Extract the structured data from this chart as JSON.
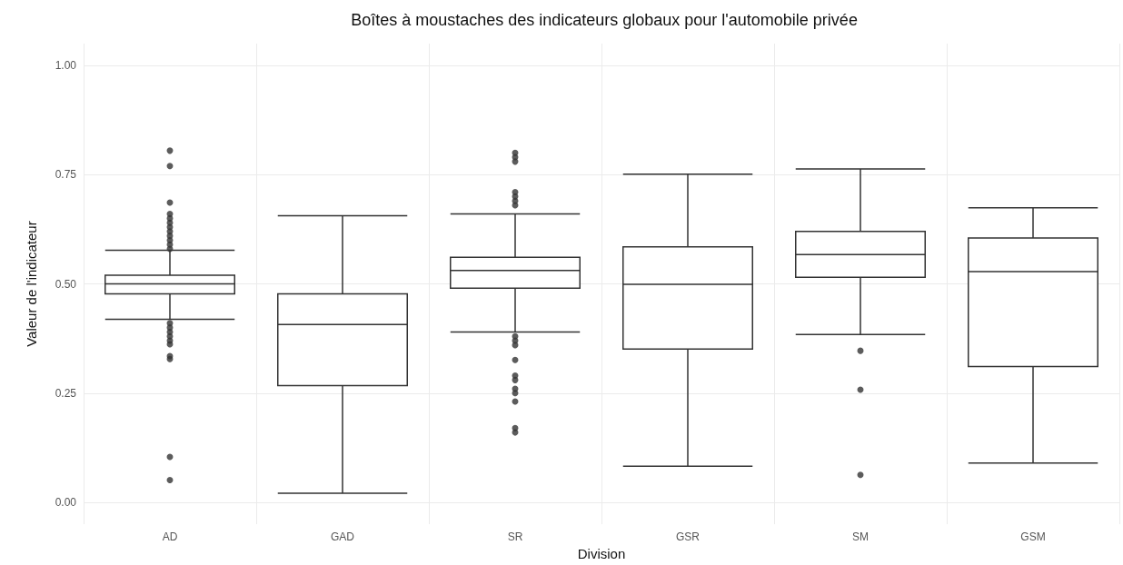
{
  "chart_data": {
    "type": "box",
    "title": "Boîtes à moustaches des indicateurs globaux pour l'automobile privée",
    "xlabel": "Division",
    "ylabel": "Valeur de l'indicateur",
    "categories": [
      "AD",
      "GAD",
      "SR",
      "GSR",
      "SM",
      "GSM"
    ],
    "ylim": [
      -0.05,
      1.05
    ],
    "yticks": [
      {
        "value": 0,
        "label": "0.00"
      },
      {
        "value": 0.25,
        "label": "0.25"
      },
      {
        "value": 0.5,
        "label": "0.50"
      },
      {
        "value": 0.75,
        "label": "0.75"
      },
      {
        "value": 1,
        "label": "1.00"
      }
    ],
    "grid": true,
    "series": [
      {
        "color": "#333333",
        "boxes": [
          {
            "low": 0.419,
            "q1": 0.477,
            "median": 0.5,
            "q3": 0.52,
            "high": 0.577,
            "outliers": [
              0.805,
              0.77,
              0.686,
              0.66,
              0.65,
              0.64,
              0.63,
              0.62,
              0.61,
              0.6,
              0.59,
              0.58,
              0.41,
              0.4,
              0.39,
              0.38,
              0.37,
              0.362,
              0.335,
              0.328,
              0.104,
              0.051
            ]
          },
          {
            "low": 0.021,
            "q1": 0.267,
            "median": 0.407,
            "q3": 0.477,
            "high": 0.656
          },
          {
            "low": 0.39,
            "q1": 0.49,
            "median": 0.531,
            "q3": 0.561,
            "high": 0.66,
            "outliers": [
              0.8,
              0.79,
              0.78,
              0.71,
              0.7,
              0.69,
              0.68,
              0.38,
              0.37,
              0.36,
              0.326,
              0.29,
              0.28,
              0.26,
              0.25,
              0.231,
              0.17,
              0.16
            ]
          },
          {
            "low": 0.083,
            "q1": 0.351,
            "median": 0.499,
            "q3": 0.585,
            "high": 0.751
          },
          {
            "low": 0.384,
            "q1": 0.515,
            "median": 0.567,
            "q3": 0.62,
            "high": 0.763,
            "outliers": [
              0.347,
              0.258,
              0.063
            ]
          },
          {
            "low": 0.09,
            "q1": 0.311,
            "median": 0.528,
            "q3": 0.605,
            "high": 0.674
          }
        ]
      }
    ]
  }
}
